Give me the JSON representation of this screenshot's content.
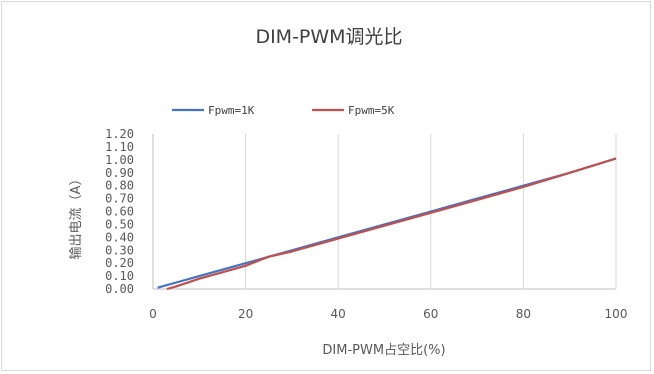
{
  "chart_data": {
    "type": "line",
    "title": "DIM-PWM调光比",
    "xlabel": "DIM-PWM占空比(%)",
    "ylabel": "输出电流（A）",
    "xlim": [
      0,
      100
    ],
    "ylim": [
      0,
      1.2
    ],
    "x_ticks": [
      "0",
      "20",
      "40",
      "60",
      "80",
      "100"
    ],
    "y_ticks": [
      "0.00",
      "0.10",
      "0.20",
      "0.30",
      "0.40",
      "0.50",
      "0.60",
      "0.70",
      "0.80",
      "0.90",
      "1.00",
      "1.10",
      "1.20"
    ],
    "grid": "vertical",
    "legend_position": "top",
    "series": [
      {
        "name": "Fpwm=1K",
        "color": "#4472C4",
        "x": [
          1,
          5,
          10,
          20,
          30,
          40,
          50,
          60,
          70,
          80,
          90,
          100
        ],
        "y": [
          0.01,
          0.05,
          0.1,
          0.2,
          0.3,
          0.4,
          0.5,
          0.6,
          0.7,
          0.8,
          0.9,
          1.01
        ]
      },
      {
        "name": "Fpwm=5K",
        "color": "#C0504D",
        "x": [
          3,
          5,
          10,
          20,
          25,
          30,
          40,
          50,
          60,
          70,
          80,
          90,
          100
        ],
        "y": [
          0.0,
          0.02,
          0.08,
          0.18,
          0.25,
          0.29,
          0.39,
          0.49,
          0.59,
          0.69,
          0.79,
          0.9,
          1.01
        ]
      }
    ]
  }
}
